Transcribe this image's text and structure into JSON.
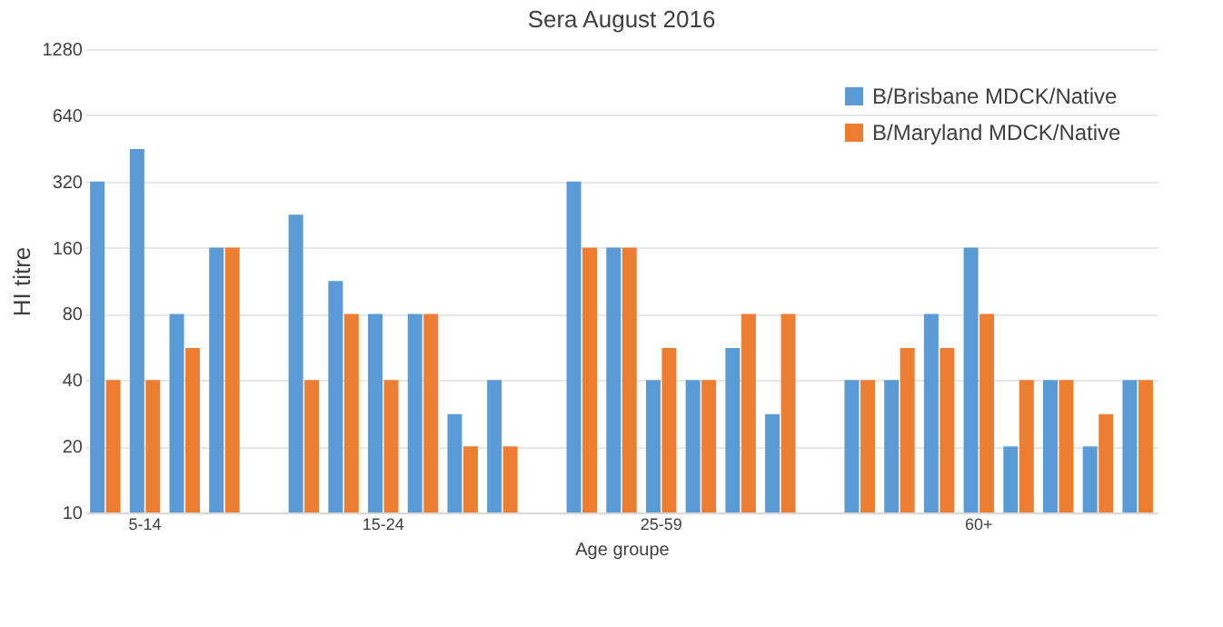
{
  "chart_data": {
    "type": "bar",
    "title": "Sera August 2016",
    "xlabel": "Age groupe",
    "ylabel": "HI titre",
    "categories": [
      null,
      "5-14",
      null,
      null,
      null,
      null,
      null,
      "15-24",
      null,
      null,
      null,
      null,
      null,
      null,
      "25-59",
      null,
      null,
      null,
      null,
      null,
      null,
      null,
      "60+",
      null,
      null,
      null,
      null
    ],
    "series": [
      {
        "name": "B/Brisbane MDCK/Native",
        "color": "#5b9bd5",
        "values": [
          320,
          450,
          80,
          160,
          null,
          226,
          113,
          80,
          80,
          28,
          40,
          null,
          320,
          160,
          40,
          40,
          56,
          28,
          null,
          40,
          40,
          80,
          160,
          20,
          40,
          20,
          40
        ]
      },
      {
        "name": "B/Maryland MDCK/Native",
        "color": "#ed7d31",
        "values": [
          40,
          40,
          56,
          160,
          null,
          40,
          80,
          40,
          80,
          20,
          20,
          null,
          160,
          160,
          56,
          40,
          80,
          80,
          null,
          40,
          56,
          56,
          80,
          40,
          40,
          28,
          40
        ]
      }
    ],
    "log": "y",
    "ylim": [
      10,
      1280
    ],
    "yticks": [
      10,
      20,
      40,
      80,
      160,
      320,
      640,
      1280
    ],
    "grid": "y",
    "legend": "top right"
  }
}
